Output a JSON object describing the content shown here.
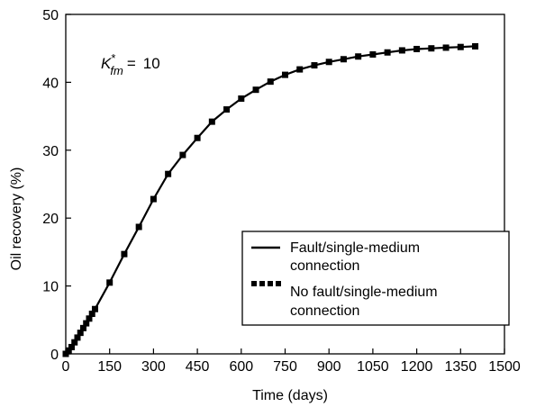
{
  "chart_data": {
    "type": "line",
    "title": "",
    "xlabel": "Time (days)",
    "ylabel": "Oil recovery (%)",
    "xlim": [
      0,
      1500
    ],
    "ylim": [
      0,
      50
    ],
    "xticks": [
      0,
      150,
      300,
      450,
      600,
      750,
      900,
      1050,
      1200,
      1350,
      1500
    ],
    "yticks": [
      0,
      10,
      20,
      30,
      40,
      50
    ],
    "grid": false,
    "legend_position": "bottom-right",
    "annotation": {
      "symbol": "K",
      "superscript": "*",
      "subscript": "fm",
      "equals": "=",
      "value": "10"
    },
    "series": [
      {
        "name": "Fault/single-medium connection",
        "name_lines": [
          "Fault/single-medium",
          "connection"
        ],
        "style": "solid",
        "x": [
          0,
          10,
          20,
          30,
          40,
          50,
          60,
          70,
          80,
          90,
          100,
          150,
          200,
          250,
          300,
          350,
          400,
          450,
          500,
          550,
          600,
          650,
          700,
          750,
          800,
          850,
          900,
          950,
          1000,
          1050,
          1100,
          1150,
          1200,
          1250,
          1300,
          1350,
          1400
        ],
        "y": [
          0,
          0.5,
          1.0,
          1.7,
          2.4,
          3.1,
          3.8,
          4.5,
          5.2,
          5.9,
          6.6,
          10.5,
          14.7,
          18.7,
          22.8,
          26.5,
          29.3,
          31.8,
          34.2,
          36.0,
          37.6,
          38.9,
          40.1,
          41.1,
          41.9,
          42.5,
          43.0,
          43.4,
          43.8,
          44.1,
          44.4,
          44.7,
          44.9,
          45.0,
          45.1,
          45.2,
          45.3
        ]
      },
      {
        "name": "No fault/single-medium connection",
        "name_lines": [
          "No fault/single-medium",
          "connection"
        ],
        "style": "markers",
        "x": [
          0,
          10,
          20,
          30,
          40,
          50,
          60,
          70,
          80,
          90,
          100,
          150,
          200,
          250,
          300,
          350,
          400,
          450,
          500,
          550,
          600,
          650,
          700,
          750,
          800,
          850,
          900,
          950,
          1000,
          1050,
          1100,
          1150,
          1200,
          1250,
          1300,
          1350,
          1400
        ],
        "y": [
          0,
          0.5,
          1.0,
          1.7,
          2.4,
          3.1,
          3.8,
          4.5,
          5.2,
          5.9,
          6.6,
          10.5,
          14.7,
          18.7,
          22.8,
          26.5,
          29.3,
          31.8,
          34.2,
          36.0,
          37.6,
          38.9,
          40.1,
          41.1,
          41.9,
          42.5,
          43.0,
          43.4,
          43.8,
          44.1,
          44.4,
          44.7,
          44.9,
          45.0,
          45.1,
          45.2,
          45.3
        ]
      }
    ]
  }
}
